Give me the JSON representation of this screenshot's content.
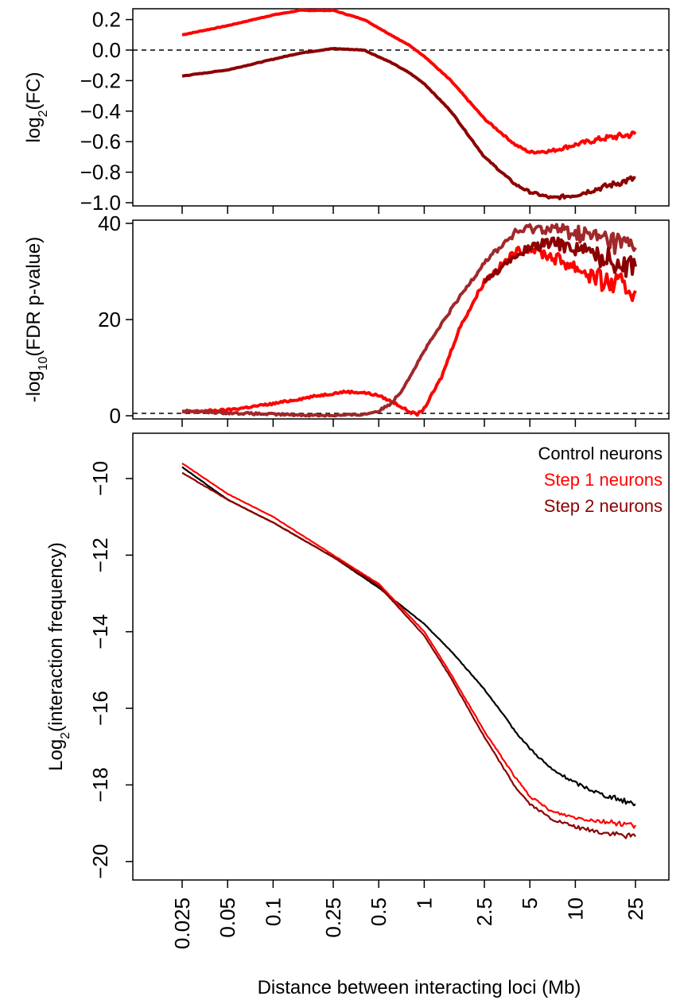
{
  "xlabel": "Distance between interacting loci (Mb)",
  "x_ticks": [
    {
      "value": 0.025,
      "label": "0.025"
    },
    {
      "value": 0.05,
      "label": "0.05"
    },
    {
      "value": 0.1,
      "label": "0.1"
    },
    {
      "value": 0.25,
      "label": "0.25"
    },
    {
      "value": 0.5,
      "label": "0.5"
    },
    {
      "value": 1,
      "label": "1"
    },
    {
      "value": 2.5,
      "label": "2.5"
    },
    {
      "value": 5,
      "label": "5"
    },
    {
      "value": 10,
      "label": "10"
    },
    {
      "value": 25,
      "label": "25"
    }
  ],
  "colors": {
    "control": "#000000",
    "step1": "#ff0000",
    "step2": "#8b0000",
    "step2_fdr": "#a0282b"
  },
  "legend": {
    "control": "Control neurons",
    "step1": "Step 1 neurons",
    "step2": "Step 2 neurons"
  },
  "chart_data": [
    {
      "type": "line",
      "ylabel_base": "log",
      "ylabel_sub": "2",
      "ylabel_rest": "(FC)",
      "x_scale": "log",
      "xlim": [
        0.025,
        25
      ],
      "ylim": [
        -1.0,
        0.25
      ],
      "y_ticks": [
        {
          "value": 0.2,
          "label": "0.2"
        },
        {
          "value": 0.0,
          "label": "0.0"
        },
        {
          "value": -0.2,
          "label": "−0.2"
        },
        {
          "value": -0.4,
          "label": "−0.4"
        },
        {
          "value": -0.6,
          "label": "−0.6"
        },
        {
          "value": -0.8,
          "label": "−0.8"
        },
        {
          "value": -1.0,
          "label": "−1.0"
        }
      ],
      "reference_line": {
        "y": 0,
        "style": "dashed"
      },
      "series": [
        {
          "key": "step1",
          "x": [
            0.025,
            0.05,
            0.1,
            0.15,
            0.25,
            0.4,
            0.6,
            0.8,
            1,
            1.5,
            2.5,
            4,
            5,
            7,
            10,
            15,
            25
          ],
          "y": [
            0.1,
            0.16,
            0.23,
            0.26,
            0.26,
            0.2,
            0.1,
            0.03,
            -0.04,
            -0.2,
            -0.45,
            -0.62,
            -0.67,
            -0.66,
            -0.62,
            -0.58,
            -0.55
          ]
        },
        {
          "key": "step2",
          "x": [
            0.025,
            0.05,
            0.1,
            0.15,
            0.25,
            0.4,
            0.6,
            0.8,
            1,
            1.5,
            2.5,
            4,
            5,
            7,
            10,
            15,
            25
          ],
          "y": [
            -0.17,
            -0.13,
            -0.06,
            -0.02,
            0.01,
            0.0,
            -0.08,
            -0.15,
            -0.22,
            -0.4,
            -0.7,
            -0.88,
            -0.93,
            -0.97,
            -0.95,
            -0.9,
            -0.84
          ]
        }
      ]
    },
    {
      "type": "line",
      "ylabel_base": "-log",
      "ylabel_sub": "10",
      "ylabel_rest": "(FDR p-value)",
      "x_scale": "log",
      "xlim": [
        0.025,
        25
      ],
      "ylim": [
        0,
        40
      ],
      "y_ticks": [
        {
          "value": 40,
          "label": "40"
        },
        {
          "value": 20,
          "label": "20"
        },
        {
          "value": 0,
          "label": "0"
        }
      ],
      "reference_line": {
        "y": 0.5,
        "style": "dashed"
      },
      "series": [
        {
          "key": "step1",
          "x": [
            0.025,
            0.05,
            0.1,
            0.2,
            0.3,
            0.4,
            0.5,
            0.65,
            0.8,
            0.9,
            1,
            1.3,
            1.7,
            2.5,
            4,
            5,
            7,
            10,
            15,
            25
          ],
          "y": [
            0.8,
            1.2,
            2.5,
            4.2,
            5.0,
            4.8,
            4.2,
            2.5,
            0.8,
            0.3,
            1.5,
            8,
            18,
            28,
            34,
            35,
            33,
            31,
            28,
            26
          ]
        },
        {
          "key": "step2_fdr",
          "x": [
            0.025,
            0.05,
            0.1,
            0.2,
            0.3,
            0.4,
            0.5,
            0.6,
            0.7,
            0.85,
            1,
            1.5,
            2.5,
            4,
            5,
            7,
            10,
            15,
            25
          ],
          "y": [
            1.0,
            0.6,
            0.3,
            0.1,
            0.1,
            0.3,
            1.0,
            2.5,
            5.0,
            9.5,
            13.5,
            22,
            32,
            38,
            39,
            39,
            38,
            37,
            35
          ]
        },
        {
          "key": "step2",
          "x": [
            2.5,
            4,
            5,
            7,
            10,
            15,
            25
          ],
          "y": [
            28,
            33,
            35,
            36,
            35,
            33,
            31
          ]
        }
      ]
    },
    {
      "type": "line",
      "ylabel_base": "Log",
      "ylabel_sub": "2",
      "ylabel_rest": "(interaction  frequency)",
      "x_scale": "log",
      "xlim": [
        0.025,
        25
      ],
      "ylim": [
        -20.4,
        -8.9
      ],
      "y_ticks": [
        {
          "value": -10,
          "label": "−10"
        },
        {
          "value": -12,
          "label": "−12"
        },
        {
          "value": -14,
          "label": "−14"
        },
        {
          "value": -16,
          "label": "−16"
        },
        {
          "value": -18,
          "label": "−18"
        },
        {
          "value": -20,
          "label": "−20"
        }
      ],
      "legend_position": "top-right",
      "series": [
        {
          "key": "control",
          "x": [
            0.025,
            0.05,
            0.1,
            0.25,
            0.5,
            1,
            1.5,
            2.5,
            4,
            5,
            7,
            10,
            15,
            25
          ],
          "y": [
            -9.7,
            -10.55,
            -11.15,
            -12.05,
            -12.85,
            -13.8,
            -14.5,
            -15.5,
            -16.6,
            -17.05,
            -17.6,
            -17.95,
            -18.25,
            -18.5
          ]
        },
        {
          "key": "step1",
          "x": [
            0.025,
            0.05,
            0.1,
            0.25,
            0.5,
            1,
            1.5,
            2.5,
            4,
            5,
            7,
            10,
            15,
            25
          ],
          "y": [
            -9.6,
            -10.4,
            -11.0,
            -12.0,
            -12.75,
            -14.0,
            -15.1,
            -16.6,
            -17.8,
            -18.3,
            -18.7,
            -18.85,
            -18.95,
            -19.05
          ]
        },
        {
          "key": "step2",
          "x": [
            0.025,
            0.05,
            0.1,
            0.25,
            0.5,
            1,
            1.5,
            2.5,
            4,
            5,
            7,
            10,
            15,
            25
          ],
          "y": [
            -9.85,
            -10.55,
            -11.15,
            -12.05,
            -12.8,
            -14.1,
            -15.2,
            -16.75,
            -18.05,
            -18.5,
            -18.9,
            -19.1,
            -19.25,
            -19.35
          ]
        }
      ]
    }
  ]
}
